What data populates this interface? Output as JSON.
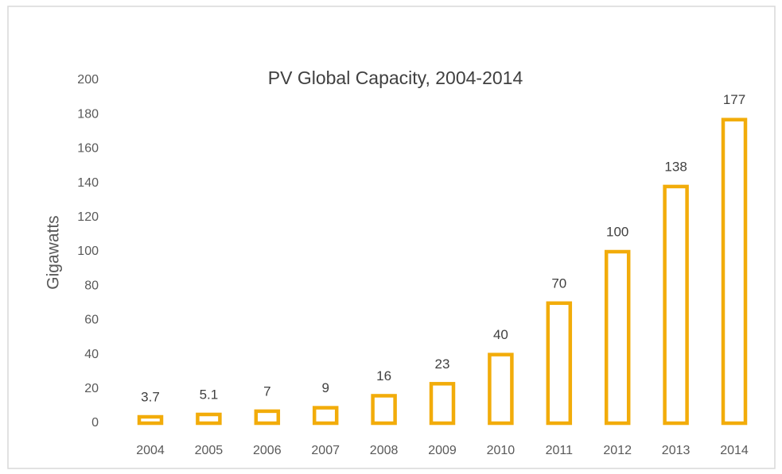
{
  "chart_data": {
    "type": "bar",
    "title": "PV Global Capacity, 2004-2014",
    "y_axis_label": "Gigawatts",
    "categories": [
      "2004",
      "2005",
      "2006",
      "2007",
      "2008",
      "2009",
      "2010",
      "2011",
      "2012",
      "2013",
      "2014"
    ],
    "values": [
      3.7,
      5.1,
      7,
      9,
      16,
      23,
      40,
      70,
      100,
      138,
      177
    ],
    "color": "#f2ac0a",
    "ylim": [
      0,
      200
    ],
    "yticks": [
      0,
      20,
      40,
      60,
      80,
      100,
      120,
      140,
      160,
      180,
      200
    ],
    "grid": false
  }
}
